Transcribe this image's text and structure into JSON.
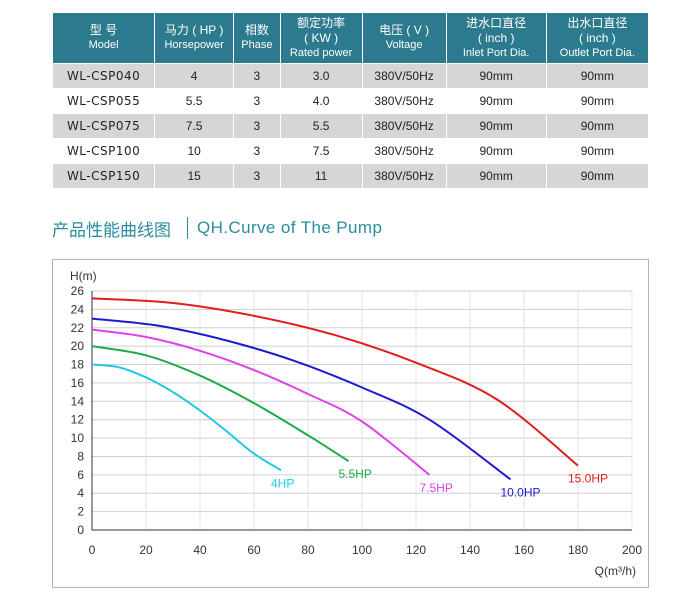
{
  "table": {
    "headers": [
      {
        "zh": "型 号",
        "en": "Model"
      },
      {
        "zh": "马力 ( HP )",
        "en": "Horsepower"
      },
      {
        "zh": "相数",
        "en": "Phase"
      },
      {
        "zh": "额定功率",
        "zh2": "( KW )",
        "en": "Rated power"
      },
      {
        "zh": "电压 ( V )",
        "en": "Voltage"
      },
      {
        "zh": "进水口直径",
        "zh2": "( inch )",
        "en": "Inlet Port Dia."
      },
      {
        "zh": "出水口直径",
        "zh2": "( inch )",
        "en": "Outlet Port Dia."
      }
    ],
    "rows": [
      [
        "WL-CSP040",
        "4",
        "3",
        "3.0",
        "380V/50Hz",
        "90mm",
        "90mm"
      ],
      [
        "WL-CSP055",
        "5.5",
        "3",
        "4.0",
        "380V/50Hz",
        "90mm",
        "90mm"
      ],
      [
        "WL-CSP075",
        "7.5",
        "3",
        "5.5",
        "380V/50Hz",
        "90mm",
        "90mm"
      ],
      [
        "WL-CSP100",
        "10",
        "3",
        "7.5",
        "380V/50Hz",
        "90mm",
        "90mm"
      ],
      [
        "WL-CSP150",
        "15",
        "3",
        "11",
        "380V/50Hz",
        "90mm",
        "90mm"
      ]
    ],
    "colors": {
      "header_bg": "#2b7a8e",
      "row_alt_bg": "#d6d6d6"
    }
  },
  "section": {
    "title_zh": "产品性能曲线图",
    "title_en": "QH.Curve of The Pump",
    "color": "#2b8ba0"
  },
  "chart_data": {
    "type": "line",
    "ylabel": "H(m)",
    "xlabel": "Q(m³/h)",
    "xlim": [
      0,
      200
    ],
    "ylim": [
      0,
      26
    ],
    "xticks": [
      0,
      20,
      40,
      60,
      80,
      100,
      120,
      140,
      160,
      180,
      200
    ],
    "yticks": [
      0,
      2,
      4,
      6,
      8,
      10,
      12,
      14,
      16,
      18,
      20,
      22,
      24,
      26
    ],
    "grid": true,
    "series": [
      {
        "name": "4HP",
        "color": "#1ec8e6",
        "x": [
          0,
          10,
          20,
          30,
          40,
          50,
          60,
          70
        ],
        "y": [
          18,
          17.7,
          16.6,
          15.0,
          13.0,
          10.7,
          8.3,
          6.5
        ]
      },
      {
        "name": "5.5HP",
        "color": "#1aab48",
        "x": [
          0,
          20,
          40,
          60,
          80,
          95
        ],
        "y": [
          20,
          19.0,
          16.8,
          13.8,
          10.3,
          7.5
        ]
      },
      {
        "name": "7.5HP",
        "color": "#e040e8",
        "x": [
          0,
          20,
          40,
          60,
          80,
          100,
          125
        ],
        "y": [
          21.8,
          21.0,
          19.5,
          17.4,
          14.8,
          11.8,
          6.0
        ]
      },
      {
        "name": "10.0HP",
        "color": "#1a1ad0",
        "x": [
          0,
          25,
          50,
          75,
          100,
          125,
          155
        ],
        "y": [
          23,
          22.2,
          20.6,
          18.4,
          15.5,
          12.0,
          5.5
        ]
      },
      {
        "name": "15.0HP",
        "color": "#e01e1e",
        "x": [
          0,
          30,
          60,
          90,
          120,
          150,
          180
        ],
        "y": [
          25.2,
          24.7,
          23.3,
          21.2,
          18.2,
          14.2,
          7.0
        ]
      }
    ]
  }
}
